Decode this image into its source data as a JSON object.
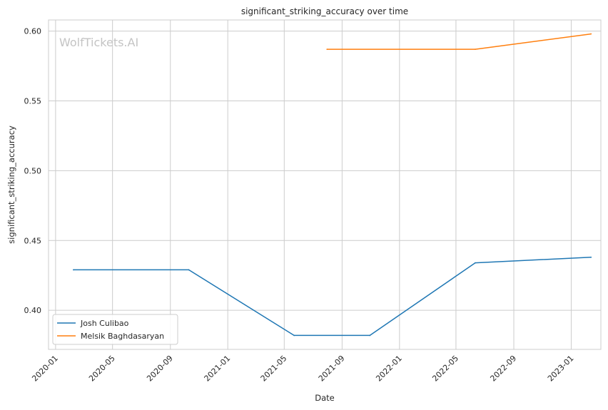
{
  "chart_data": {
    "type": "line",
    "title": "significant_striking_accuracy over time",
    "xlabel": "Date",
    "ylabel": "significant_striking_accuracy",
    "watermark": "WolfTickets.AI",
    "x_scale": "date",
    "xlim": [
      "2019-12-17",
      "2023-03-05"
    ],
    "ylim": [
      0.372,
      0.608
    ],
    "x_ticks": [
      "2020-01",
      "2020-05",
      "2020-09",
      "2021-01",
      "2021-05",
      "2021-09",
      "2022-01",
      "2022-05",
      "2022-09",
      "2023-01"
    ],
    "y_ticks": [
      0.4,
      0.45,
      0.5,
      0.55,
      0.6
    ],
    "y_tick_labels": [
      "0.40",
      "0.45",
      "0.50",
      "0.55",
      "0.60"
    ],
    "grid": true,
    "legend_position": "lower-left",
    "series": [
      {
        "name": "Josh Culibao",
        "color": "#1f77b4",
        "points": [
          {
            "x": "2020-02-08",
            "y": 0.429
          },
          {
            "x": "2020-10-10",
            "y": 0.429
          },
          {
            "x": "2021-05-22",
            "y": 0.382
          },
          {
            "x": "2021-10-30",
            "y": 0.382
          },
          {
            "x": "2022-06-11",
            "y": 0.434
          },
          {
            "x": "2023-02-12",
            "y": 0.438
          }
        ]
      },
      {
        "name": "Melsik Baghdasaryan",
        "color": "#ff7f0e",
        "points": [
          {
            "x": "2021-07-31",
            "y": 0.587
          },
          {
            "x": "2022-06-11",
            "y": 0.587
          },
          {
            "x": "2023-02-12",
            "y": 0.598
          }
        ]
      }
    ]
  }
}
